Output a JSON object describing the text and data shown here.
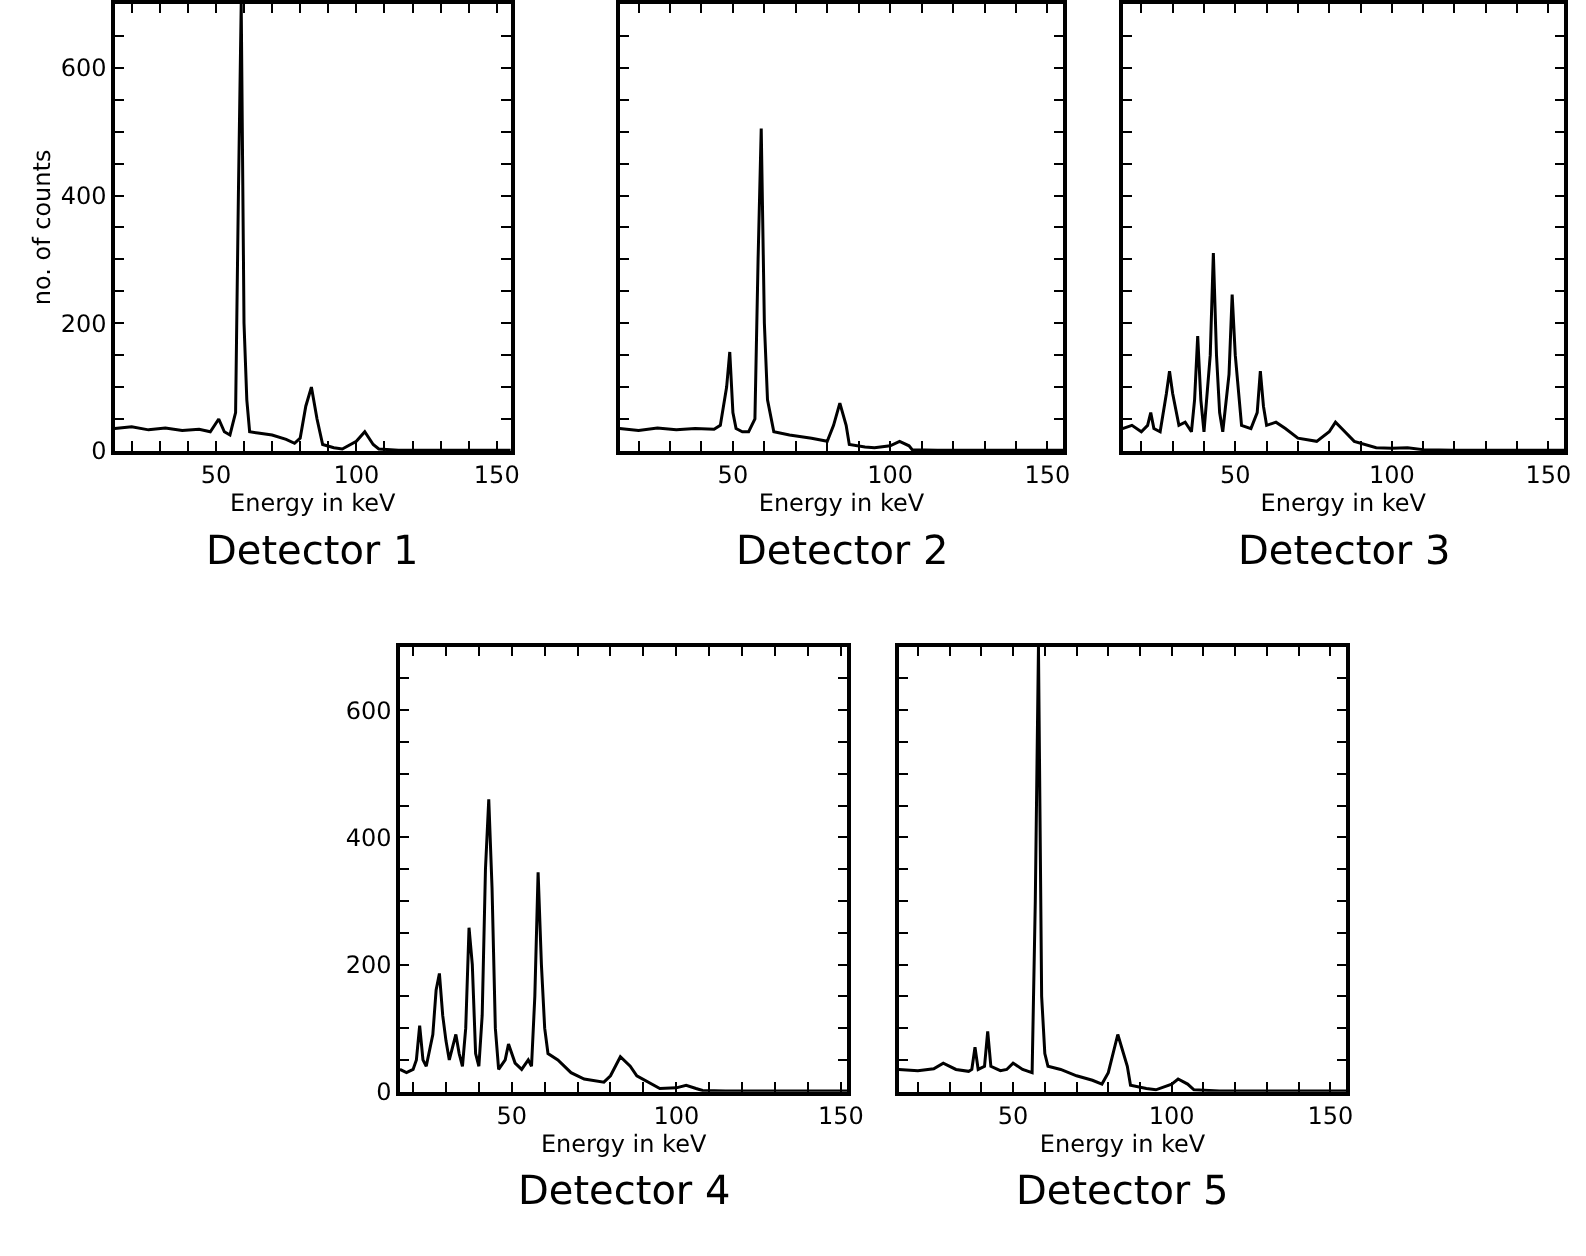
{
  "chart_data": [
    {
      "type": "line",
      "title": "Detector 1",
      "xlabel": "Energy in keV",
      "ylabel": "no. of counts",
      "xlim": [
        14,
        155
      ],
      "ylim": [
        0,
        700
      ],
      "xticks": [
        {
          "value": 20,
          "label": null
        },
        {
          "value": 30,
          "label": null
        },
        {
          "value": 40,
          "label": null
        },
        50,
        {
          "value": 60,
          "label": null
        },
        {
          "value": 70,
          "label": null
        },
        {
          "value": 80,
          "label": null
        },
        {
          "value": 90,
          "label": null
        },
        100,
        {
          "value": 110,
          "label": null
        },
        {
          "value": 120,
          "label": null
        },
        {
          "value": 130,
          "label": null
        },
        {
          "value": 140,
          "label": null
        },
        150
      ],
      "yticks": [
        0,
        {
          "value": 50,
          "label": null
        },
        {
          "value": 100,
          "label": null
        },
        {
          "value": 150,
          "label": null
        },
        200,
        {
          "value": 250,
          "label": null
        },
        {
          "value": 300,
          "label": null
        },
        {
          "value": 350,
          "label": null
        },
        400,
        {
          "value": 450,
          "label": null
        },
        {
          "value": 500,
          "label": null
        },
        {
          "value": 550,
          "label": null
        },
        600,
        {
          "value": 650,
          "label": null
        }
      ],
      "series": [
        {
          "color": "#000000",
          "x": [
            14,
            20,
            26,
            32,
            38,
            44,
            48,
            51,
            53,
            55,
            57,
            58,
            59,
            60,
            61,
            62,
            65,
            70,
            75,
            78,
            80,
            82,
            84,
            86,
            88,
            92,
            95,
            100,
            103,
            106,
            108,
            115,
            125,
            135,
            145,
            155
          ],
          "values": [
            35,
            38,
            33,
            36,
            32,
            34,
            30,
            50,
            30,
            25,
            60,
            400,
            700,
            200,
            80,
            30,
            28,
            25,
            18,
            12,
            20,
            70,
            100,
            50,
            10,
            5,
            3,
            15,
            30,
            10,
            3,
            1,
            1,
            1,
            1,
            1
          ]
        }
      ]
    },
    {
      "type": "line",
      "title": "Detector 2",
      "xlabel": "Energy in keV",
      "xlim": [
        14,
        155
      ],
      "ylim": [
        0,
        700
      ],
      "tick_labels": "x",
      "xticks": [
        {
          "value": 20,
          "label": null
        },
        {
          "value": 30,
          "label": null
        },
        {
          "value": 40,
          "label": null
        },
        50,
        {
          "value": 60,
          "label": null
        },
        {
          "value": 70,
          "label": null
        },
        {
          "value": 80,
          "label": null
        },
        {
          "value": 90,
          "label": null
        },
        100,
        {
          "value": 110,
          "label": null
        },
        {
          "value": 120,
          "label": null
        },
        {
          "value": 130,
          "label": null
        },
        {
          "value": 140,
          "label": null
        },
        150
      ],
      "yticks": [
        {
          "value": 0,
          "label": null
        },
        {
          "value": 50,
          "label": null
        },
        {
          "value": 100,
          "label": null
        },
        {
          "value": 150,
          "label": null
        },
        {
          "value": 200,
          "label": null
        },
        {
          "value": 250,
          "label": null
        },
        {
          "value": 300,
          "label": null
        },
        {
          "value": 350,
          "label": null
        },
        {
          "value": 400,
          "label": null
        },
        {
          "value": 450,
          "label": null
        },
        {
          "value": 500,
          "label": null
        },
        {
          "value": 550,
          "label": null
        },
        {
          "value": 600,
          "label": null
        },
        {
          "value": 650,
          "label": null
        }
      ],
      "series": [
        {
          "color": "#000000",
          "x": [
            14,
            20,
            26,
            32,
            38,
            44,
            46,
            48,
            49,
            50,
            51,
            53,
            55,
            57,
            58,
            59,
            60,
            61,
            63,
            68,
            75,
            80,
            82,
            84,
            86,
            87,
            92,
            95,
            100,
            103,
            106,
            107,
            115,
            125,
            135,
            145,
            155
          ],
          "values": [
            35,
            32,
            36,
            33,
            35,
            34,
            40,
            100,
            155,
            60,
            35,
            30,
            30,
            50,
            300,
            505,
            200,
            80,
            30,
            25,
            20,
            15,
            40,
            75,
            40,
            10,
            6,
            5,
            8,
            15,
            8,
            2,
            1,
            1,
            1,
            1,
            1
          ]
        }
      ]
    },
    {
      "type": "line",
      "title": "Detector 3",
      "xlabel": "Energy in keV",
      "xlim": [
        14,
        155
      ],
      "ylim": [
        0,
        700
      ],
      "tick_labels": "x",
      "xticks": [
        {
          "value": 20,
          "label": null
        },
        {
          "value": 30,
          "label": null
        },
        {
          "value": 40,
          "label": null
        },
        50,
        {
          "value": 60,
          "label": null
        },
        {
          "value": 70,
          "label": null
        },
        {
          "value": 80,
          "label": null
        },
        {
          "value": 90,
          "label": null
        },
        100,
        {
          "value": 110,
          "label": null
        },
        {
          "value": 120,
          "label": null
        },
        {
          "value": 130,
          "label": null
        },
        {
          "value": 140,
          "label": null
        },
        150
      ],
      "yticks": [
        {
          "value": 0,
          "label": null
        },
        {
          "value": 50,
          "label": null
        },
        {
          "value": 100,
          "label": null
        },
        {
          "value": 150,
          "label": null
        },
        {
          "value": 200,
          "label": null
        },
        {
          "value": 250,
          "label": null
        },
        {
          "value": 300,
          "label": null
        },
        {
          "value": 350,
          "label": null
        },
        {
          "value": 400,
          "label": null
        },
        {
          "value": 450,
          "label": null
        },
        {
          "value": 500,
          "label": null
        },
        {
          "value": 550,
          "label": null
        },
        {
          "value": 600,
          "label": null
        },
        {
          "value": 650,
          "label": null
        }
      ],
      "series": [
        {
          "color": "#000000",
          "x": [
            14,
            17,
            20,
            22,
            23,
            24,
            26,
            28,
            29,
            30,
            32,
            34,
            36,
            37,
            38,
            39,
            40,
            42,
            43,
            44,
            45,
            46,
            48,
            49,
            50,
            52,
            55,
            57,
            58,
            59,
            60,
            63,
            66,
            70,
            76,
            80,
            82,
            84,
            88,
            95,
            100,
            105,
            110,
            120,
            130,
            140,
            155
          ],
          "values": [
            35,
            40,
            30,
            40,
            60,
            35,
            30,
            90,
            125,
            90,
            40,
            45,
            30,
            80,
            180,
            80,
            30,
            150,
            310,
            150,
            60,
            30,
            120,
            245,
            150,
            40,
            35,
            60,
            125,
            70,
            40,
            45,
            35,
            20,
            15,
            30,
            45,
            35,
            15,
            5,
            4,
            5,
            2,
            1,
            1,
            1,
            1
          ]
        }
      ]
    },
    {
      "type": "line",
      "title": "Detector 4",
      "xlabel": "Energy in keV",
      "xlim": [
        16,
        152
      ],
      "ylim": [
        0,
        700
      ],
      "xticks": [
        {
          "value": 20,
          "label": null
        },
        {
          "value": 30,
          "label": null
        },
        {
          "value": 40,
          "label": null
        },
        50,
        {
          "value": 60,
          "label": null
        },
        {
          "value": 70,
          "label": null
        },
        {
          "value": 80,
          "label": null
        },
        {
          "value": 90,
          "label": null
        },
        100,
        {
          "value": 110,
          "label": null
        },
        {
          "value": 120,
          "label": null
        },
        {
          "value": 130,
          "label": null
        },
        {
          "value": 140,
          "label": null
        },
        150
      ],
      "yticks": [
        0,
        {
          "value": 50,
          "label": null
        },
        {
          "value": 100,
          "label": null
        },
        {
          "value": 150,
          "label": null
        },
        200,
        {
          "value": 250,
          "label": null
        },
        {
          "value": 300,
          "label": null
        },
        {
          "value": 350,
          "label": null
        },
        400,
        {
          "value": 450,
          "label": null
        },
        {
          "value": 500,
          "label": null
        },
        {
          "value": 550,
          "label": null
        },
        600,
        {
          "value": 650,
          "label": null
        }
      ],
      "series": [
        {
          "color": "#000000",
          "x": [
            16,
            18,
            20,
            21,
            22,
            23,
            24,
            26,
            27,
            28,
            29,
            30,
            31,
            33,
            34,
            35,
            36,
            37,
            38,
            39,
            40,
            41,
            42,
            43,
            44,
            45,
            46,
            48,
            49,
            51,
            53,
            55,
            56,
            57,
            58,
            59,
            60,
            61,
            64,
            68,
            72,
            78,
            80,
            83,
            86,
            88,
            95,
            100,
            103,
            106,
            108,
            115,
            125,
            135,
            145,
            152
          ],
          "values": [
            35,
            30,
            35,
            50,
            104,
            50,
            40,
            90,
            160,
            186,
            120,
            80,
            50,
            90,
            60,
            40,
            100,
            258,
            200,
            60,
            40,
            120,
            350,
            460,
            320,
            100,
            35,
            50,
            75,
            45,
            35,
            50,
            40,
            150,
            345,
            200,
            100,
            60,
            50,
            30,
            20,
            15,
            25,
            55,
            40,
            25,
            5,
            6,
            10,
            5,
            2,
            1,
            1,
            1,
            1,
            1
          ]
        }
      ]
    },
    {
      "type": "line",
      "title": "Detector 5",
      "xlabel": "Energy in keV",
      "xlim": [
        14,
        155
      ],
      "ylim": [
        0,
        700
      ],
      "tick_labels": "x",
      "xticks": [
        {
          "value": 20,
          "label": null
        },
        {
          "value": 30,
          "label": null
        },
        {
          "value": 40,
          "label": null
        },
        50,
        {
          "value": 60,
          "label": null
        },
        {
          "value": 70,
          "label": null
        },
        {
          "value": 80,
          "label": null
        },
        {
          "value": 90,
          "label": null
        },
        100,
        {
          "value": 110,
          "label": null
        },
        {
          "value": 120,
          "label": null
        },
        {
          "value": 130,
          "label": null
        },
        {
          "value": 140,
          "label": null
        },
        150
      ],
      "yticks": [
        {
          "value": 0,
          "label": null
        },
        {
          "value": 50,
          "label": null
        },
        {
          "value": 100,
          "label": null
        },
        {
          "value": 150,
          "label": null
        },
        {
          "value": 200,
          "label": null
        },
        {
          "value": 250,
          "label": null
        },
        {
          "value": 300,
          "label": null
        },
        {
          "value": 350,
          "label": null
        },
        {
          "value": 400,
          "label": null
        },
        {
          "value": 450,
          "label": null
        },
        {
          "value": 500,
          "label": null
        },
        {
          "value": 550,
          "label": null
        },
        {
          "value": 600,
          "label": null
        },
        {
          "value": 650,
          "label": null
        }
      ],
      "series": [
        {
          "color": "#000000",
          "x": [
            14,
            20,
            25,
            28,
            32,
            36,
            37,
            38,
            39,
            41,
            42,
            43,
            46,
            48,
            50,
            53,
            56,
            57,
            58,
            59,
            60,
            61,
            65,
            70,
            75,
            78,
            80,
            83,
            86,
            87,
            92,
            95,
            100,
            102,
            105,
            107,
            115,
            125,
            135,
            145,
            155
          ],
          "values": [
            35,
            33,
            36,
            45,
            35,
            32,
            35,
            70,
            35,
            40,
            95,
            40,
            33,
            35,
            45,
            35,
            30,
            300,
            700,
            150,
            60,
            40,
            35,
            25,
            18,
            12,
            30,
            90,
            40,
            10,
            5,
            3,
            12,
            20,
            12,
            3,
            1,
            1,
            1,
            1,
            1
          ]
        }
      ]
    }
  ]
}
